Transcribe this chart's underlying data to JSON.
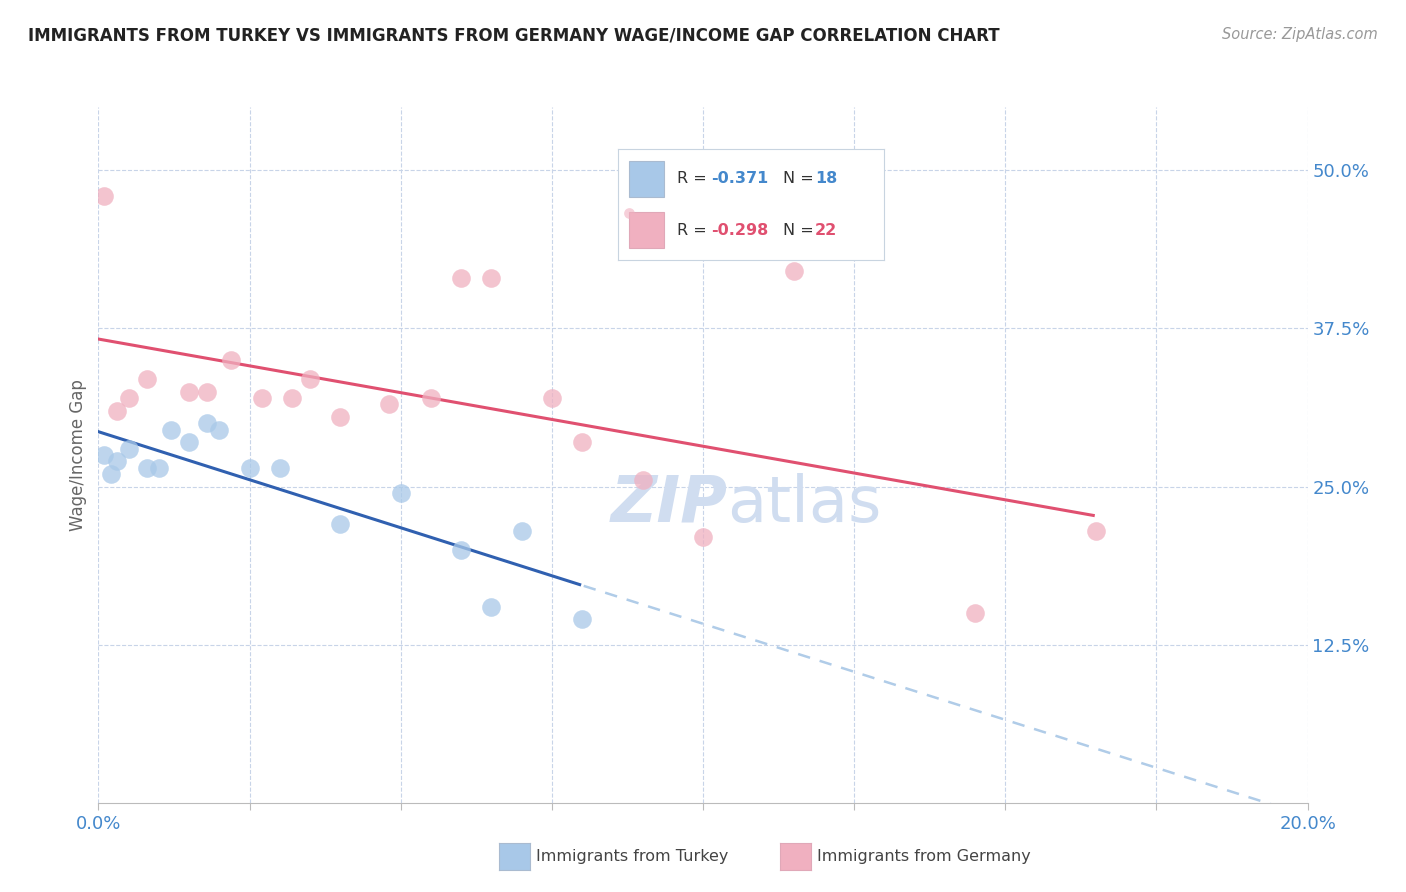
{
  "title": "IMMIGRANTS FROM TURKEY VS IMMIGRANTS FROM GERMANY WAGE/INCOME GAP CORRELATION CHART",
  "source": "Source: ZipAtlas.com",
  "ylabel": "Wage/Income Gap",
  "r_turkey": -0.371,
  "n_turkey": 18,
  "r_germany": -0.298,
  "n_germany": 22,
  "color_turkey": "#a8c8e8",
  "color_germany": "#f0b0c0",
  "color_turkey_line": "#3060b0",
  "color_germany_line": "#e05070",
  "color_turkey_dashed": "#b0cce8",
  "xlim": [
    0.0,
    0.2
  ],
  "ylim": [
    0.0,
    0.55
  ],
  "xticks": [
    0.0,
    0.025,
    0.05,
    0.075,
    0.1,
    0.125,
    0.15,
    0.175,
    0.2
  ],
  "xtick_labels": [
    "0.0%",
    "",
    "",
    "",
    "",
    "",
    "",
    "",
    "20.0%"
  ],
  "yticks_right": [
    0.125,
    0.25,
    0.375,
    0.5
  ],
  "ytick_labels_right": [
    "12.5%",
    "25.0%",
    "37.5%",
    "50.0%"
  ],
  "turkey_x": [
    0.001,
    0.002,
    0.003,
    0.005,
    0.008,
    0.01,
    0.012,
    0.015,
    0.018,
    0.02,
    0.025,
    0.03,
    0.04,
    0.05,
    0.06,
    0.065,
    0.07,
    0.08
  ],
  "turkey_y": [
    0.275,
    0.26,
    0.27,
    0.28,
    0.265,
    0.265,
    0.295,
    0.285,
    0.3,
    0.295,
    0.265,
    0.265,
    0.22,
    0.245,
    0.2,
    0.155,
    0.215,
    0.145
  ],
  "germany_x": [
    0.001,
    0.003,
    0.005,
    0.008,
    0.015,
    0.018,
    0.022,
    0.027,
    0.032,
    0.035,
    0.04,
    0.048,
    0.055,
    0.06,
    0.065,
    0.075,
    0.08,
    0.09,
    0.1,
    0.115,
    0.145,
    0.165
  ],
  "germany_y": [
    0.48,
    0.31,
    0.32,
    0.335,
    0.325,
    0.325,
    0.35,
    0.32,
    0.32,
    0.335,
    0.305,
    0.315,
    0.32,
    0.415,
    0.415,
    0.32,
    0.285,
    0.255,
    0.21,
    0.42,
    0.15,
    0.215
  ],
  "background_color": "#ffffff",
  "grid_color": "#c8d4e8",
  "title_color": "#222222",
  "axis_label_color": "#666666",
  "right_tick_color": "#4488cc",
  "watermark_color": "#d0ddf0"
}
